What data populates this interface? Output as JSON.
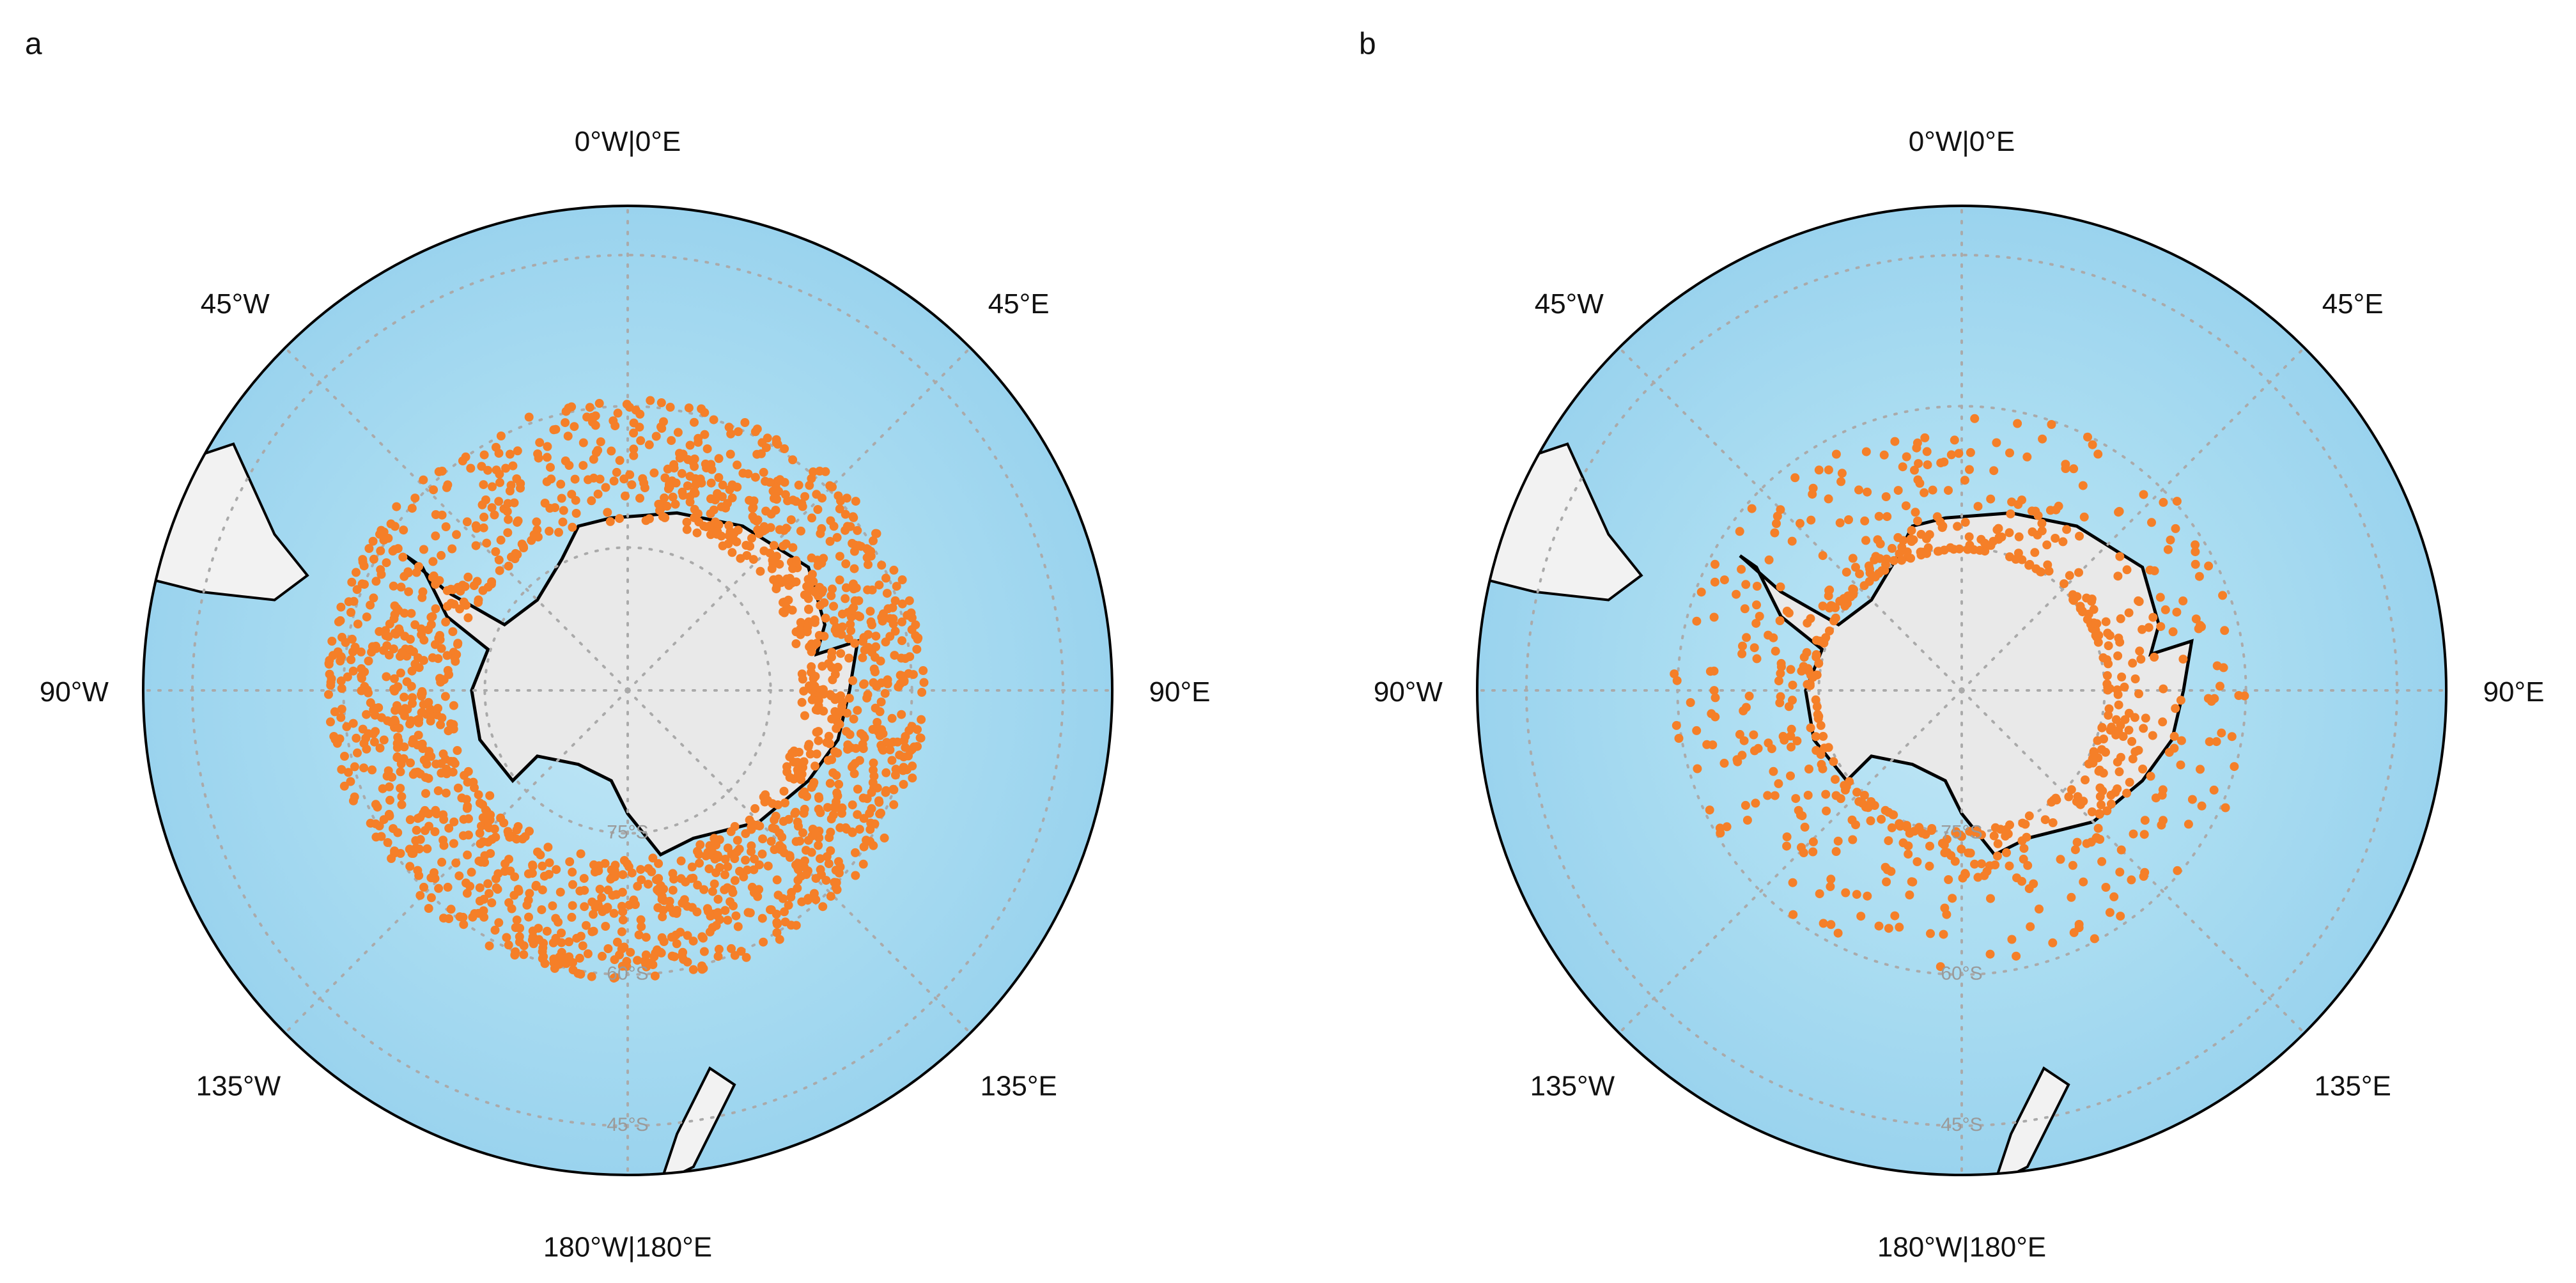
{
  "panels": [
    {
      "label": "a",
      "longitude_labels": {
        "top": "0°W|0°E",
        "top_left": "45°W",
        "top_right": "45°E",
        "left": "90°W",
        "right": "90°E",
        "bottom_left": "135°W",
        "bottom_right": "135°E",
        "bottom": "180°W|180°E"
      },
      "latitude_labels": [
        "75°S",
        "60°S",
        "45°S"
      ]
    },
    {
      "label": "b",
      "longitude_labels": {
        "top": "0°W|0°E",
        "top_left": "45°W",
        "top_right": "45°E",
        "left": "90°W",
        "right": "90°E",
        "bottom_left": "135°W",
        "bottom_right": "135°E",
        "bottom": "180°W|180°E"
      },
      "latitude_labels": [
        "75°S",
        "60°S",
        "45°S"
      ]
    }
  ]
}
